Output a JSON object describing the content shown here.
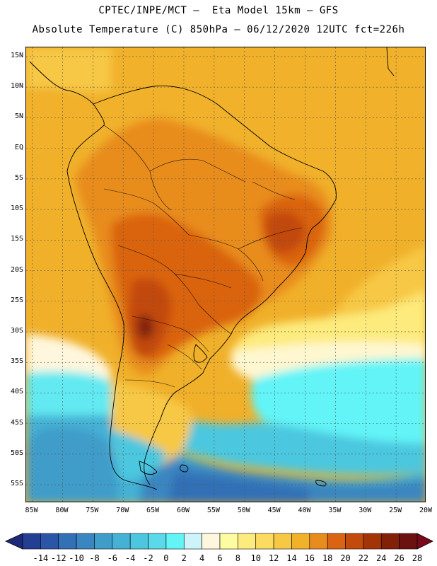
{
  "header": {
    "line1": "CPTEC/INPE/MCT —  Eta Model 15km — GFS",
    "line2": "Absolute Temperature (C) 850hPa — 06/12/2020 12UTC fct=226h"
  },
  "map": {
    "lat_labels": [
      "15N",
      "10N",
      "5N",
      "EQ",
      "5S",
      "10S",
      "15S",
      "20S",
      "25S",
      "30S",
      "35S",
      "40S",
      "45S",
      "50S",
      "55S"
    ],
    "lat_values": [
      15,
      10,
      5,
      0,
      -5,
      -10,
      -15,
      -20,
      -25,
      -30,
      -35,
      -40,
      -45,
      -50,
      -55
    ],
    "lon_labels": [
      "85W",
      "80W",
      "75W",
      "70W",
      "65W",
      "60W",
      "55W",
      "50W",
      "45W",
      "40W",
      "35W",
      "30W",
      "25W",
      "20W"
    ],
    "lon_values": [
      -85,
      -80,
      -75,
      -70,
      -65,
      -60,
      -55,
      -50,
      -45,
      -40,
      -35,
      -30,
      -25,
      -20
    ],
    "lat_range": [
      -58,
      16.5
    ],
    "lon_range": [
      -86,
      -20
    ]
  },
  "colorbar": {
    "labels": [
      "-14",
      "-12",
      "-10",
      "-8",
      "-6",
      "-4",
      "-2",
      "0",
      "2",
      "4",
      "6",
      "8",
      "10",
      "12",
      "14",
      "16",
      "18",
      "20",
      "22",
      "24",
      "26",
      "28"
    ],
    "colors": [
      "#233f94",
      "#2b56a8",
      "#3370b6",
      "#3a86c0",
      "#3f9dc9",
      "#45b1d4",
      "#4cc7df",
      "#5ad9ea",
      "#62f4f7",
      "#cdf4fb",
      "#fff7dd",
      "#fefca0",
      "#fdeb7d",
      "#fbdc60",
      "#f7c844",
      "#f1b12a",
      "#e88c1e",
      "#da6411",
      "#c24a0b",
      "#a33408",
      "#822108",
      "#6b1211"
    ],
    "arrow_left_color": "#1d2a7a",
    "arrow_right_color": "#7a0a1a"
  }
}
